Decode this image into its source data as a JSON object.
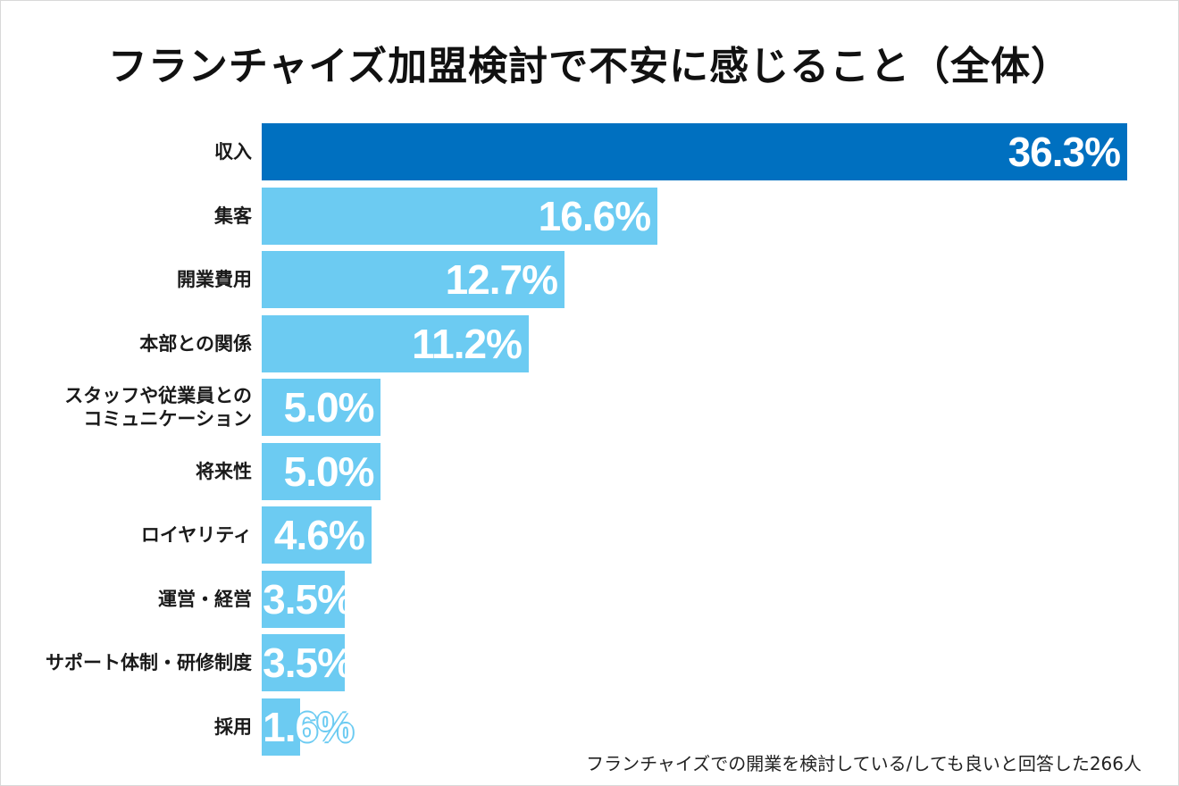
{
  "chart_data": {
    "type": "bar",
    "orientation": "horizontal",
    "title": "フランチャイズ加盟検討で不安に感じること（全体）",
    "categories": [
      "収入",
      "集客",
      "開業費用",
      "本部との関係",
      "スタッフや従業員との\nコミュニケーション",
      "将来性",
      "ロイヤリティ",
      "運営・経営",
      "サポート体制・研修制度",
      "採用"
    ],
    "values": [
      36.3,
      16.6,
      12.7,
      11.2,
      5.0,
      5.0,
      4.6,
      3.5,
      3.5,
      1.6
    ],
    "value_labels": [
      "36.3%",
      "16.6%",
      "12.7%",
      "11.2%",
      "5.0%",
      "5.0%",
      "4.6%",
      "3.5%",
      "3.5%",
      "1.6%"
    ],
    "xlim": [
      0,
      36.3
    ],
    "unit": "%",
    "highlight_index": 0,
    "colors": {
      "highlight": "#0070c0",
      "default": "#6ccbf2"
    },
    "footnote": "フランチャイズでの開業を検討している/しても良いと回答した266人"
  }
}
